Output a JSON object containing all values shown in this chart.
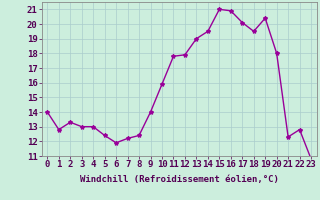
{
  "x": [
    0,
    1,
    2,
    3,
    4,
    5,
    6,
    7,
    8,
    9,
    10,
    11,
    12,
    13,
    14,
    15,
    16,
    17,
    18,
    19,
    20,
    21,
    22,
    23
  ],
  "y": [
    14.0,
    12.8,
    13.3,
    13.0,
    13.0,
    12.4,
    11.9,
    12.2,
    12.4,
    14.0,
    15.9,
    17.8,
    17.9,
    19.0,
    19.5,
    21.0,
    20.9,
    20.1,
    19.5,
    20.4,
    18.0,
    12.3,
    12.8,
    10.8
  ],
  "line_color": "#990099",
  "marker": "*",
  "marker_size": 3,
  "bg_color": "#cceedd",
  "grid_color": "#aacccc",
  "xlabel": "Windchill (Refroidissement éolien,°C)",
  "xlim": [
    -0.5,
    23.5
  ],
  "ylim": [
    11,
    21.5
  ],
  "yticks": [
    11,
    12,
    13,
    14,
    15,
    16,
    17,
    18,
    19,
    20,
    21
  ],
  "xticks": [
    0,
    1,
    2,
    3,
    4,
    5,
    6,
    7,
    8,
    9,
    10,
    11,
    12,
    13,
    14,
    15,
    16,
    17,
    18,
    19,
    20,
    21,
    22,
    23
  ],
  "xtick_labels": [
    "0",
    "1",
    "2",
    "3",
    "4",
    "5",
    "6",
    "7",
    "8",
    "9",
    "10",
    "11",
    "12",
    "13",
    "14",
    "15",
    "16",
    "17",
    "18",
    "19",
    "20",
    "21",
    "22",
    "23"
  ],
  "xlabel_fontsize": 6.5,
  "tick_fontsize": 6.5,
  "line_width": 1.0
}
